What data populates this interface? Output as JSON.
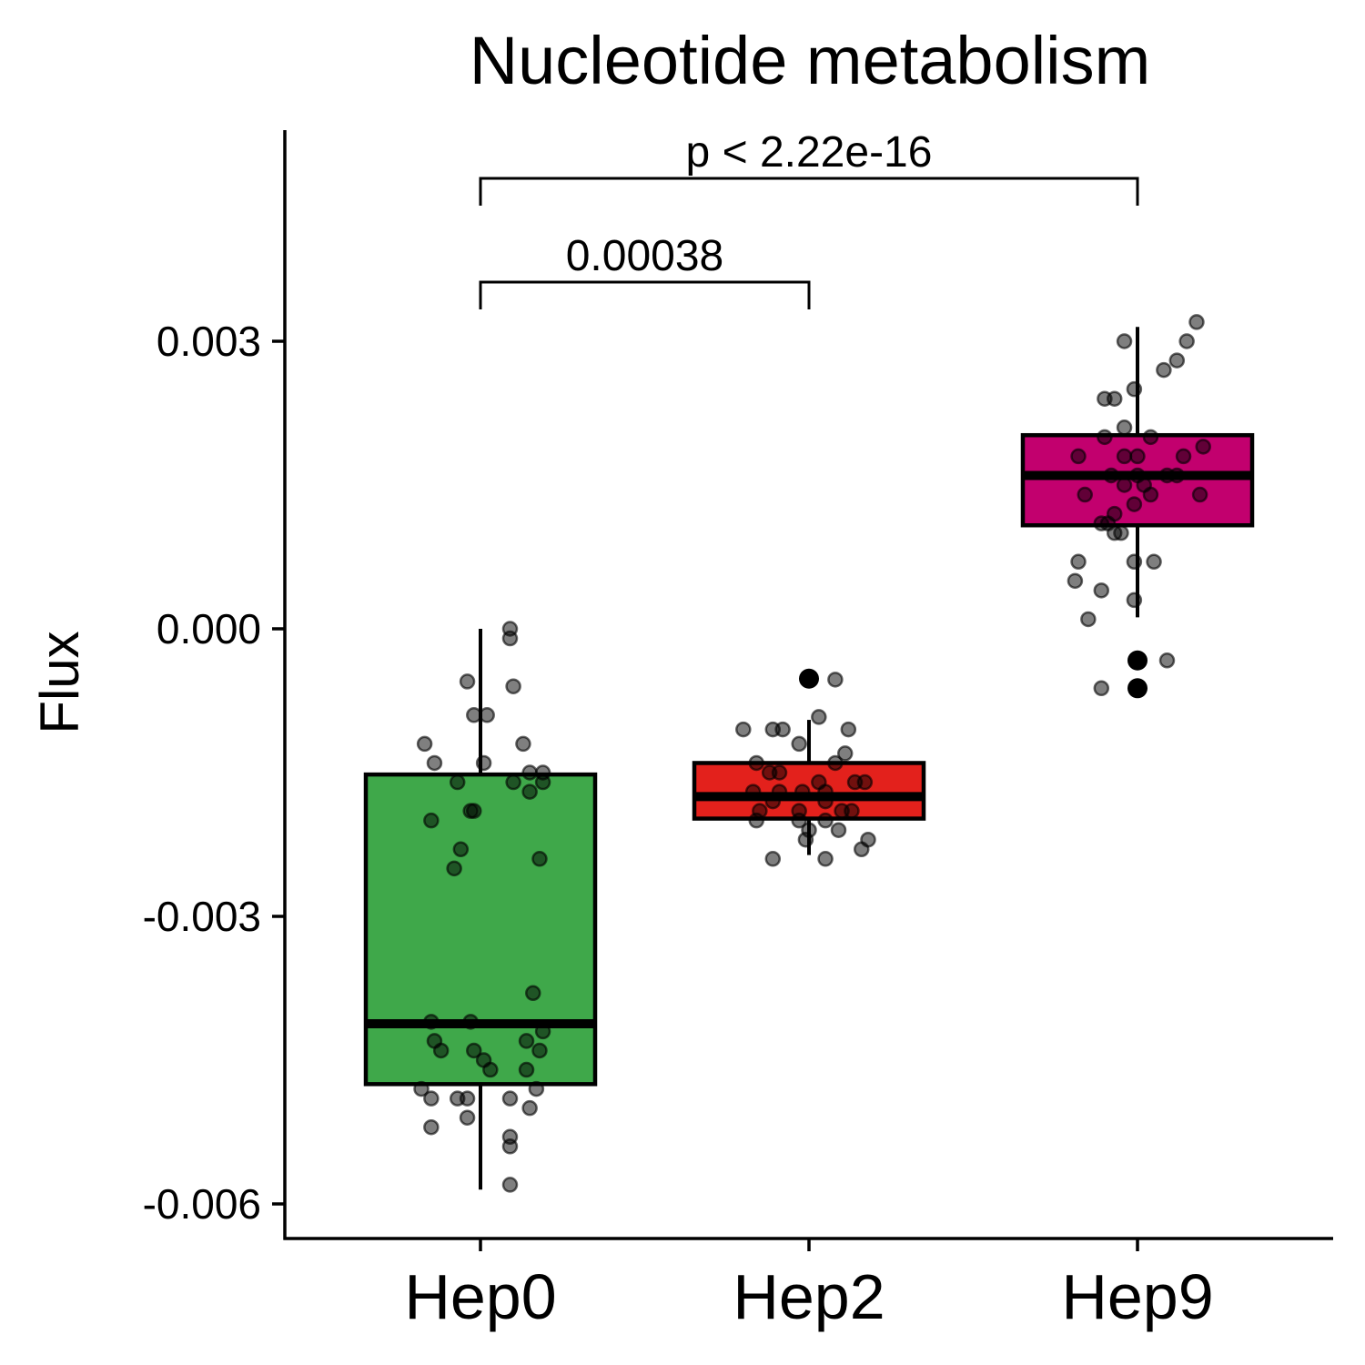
{
  "chart_data": {
    "type": "box",
    "title": "Nucleotide metabolism",
    "xlabel": "",
    "ylabel": "Flux",
    "ylim": [
      -0.0064,
      0.0052
    ],
    "yticks": [
      {
        "value": 0.003,
        "label": "0.003"
      },
      {
        "value": 0.0,
        "label": "0.000"
      },
      {
        "value": -0.003,
        "label": "-0.003"
      },
      {
        "value": -0.006,
        "label": "-0.006"
      }
    ],
    "grid": false,
    "legend": "none",
    "categories": [
      "Hep0",
      "Hep2",
      "Hep9"
    ],
    "boxes": [
      {
        "category": "Hep0",
        "color": "#3fa84a",
        "whisker_low": -0.00585,
        "q1": -0.00475,
        "median": -0.00412,
        "q3": -0.00152,
        "whisker_high": 0.0
      },
      {
        "category": "Hep2",
        "color": "#e3211c",
        "whisker_low": -0.00236,
        "q1": -0.00198,
        "median": -0.00175,
        "q3": -0.0014,
        "whisker_high": -0.00095
      },
      {
        "category": "Hep9",
        "color": "#c2006e",
        "whisker_low": 0.00012,
        "q1": 0.00108,
        "median": 0.0016,
        "q3": 0.00202,
        "whisker_high": 0.00315
      }
    ],
    "outliers": [
      {
        "category": "Hep2",
        "value": -0.00052
      },
      {
        "category": "Hep9",
        "value": -0.00033
      },
      {
        "category": "Hep9",
        "value": -0.00062
      }
    ],
    "jitter_points": {
      "Hep0": [
        {
          "dx": 0.09,
          "y": 0.0
        },
        {
          "dx": 0.09,
          "y": -0.0001
        },
        {
          "dx": -0.04,
          "y": -0.00055
        },
        {
          "dx": 0.1,
          "y": -0.0006
        },
        {
          "dx": -0.02,
          "y": -0.0009
        },
        {
          "dx": 0.02,
          "y": -0.0009
        },
        {
          "dx": -0.17,
          "y": -0.0012
        },
        {
          "dx": 0.13,
          "y": -0.0012
        },
        {
          "dx": -0.14,
          "y": -0.0014
        },
        {
          "dx": 0.01,
          "y": -0.0014
        },
        {
          "dx": 0.15,
          "y": -0.0015
        },
        {
          "dx": 0.19,
          "y": -0.0015
        },
        {
          "dx": -0.07,
          "y": -0.0016
        },
        {
          "dx": 0.1,
          "y": -0.0016
        },
        {
          "dx": 0.19,
          "y": -0.0016
        },
        {
          "dx": 0.15,
          "y": -0.0017
        },
        {
          "dx": -0.02,
          "y": -0.0019
        },
        {
          "dx": -0.03,
          "y": -0.0019
        },
        {
          "dx": -0.15,
          "y": -0.002
        },
        {
          "dx": -0.06,
          "y": -0.0023
        },
        {
          "dx": -0.08,
          "y": -0.0025
        },
        {
          "dx": 0.18,
          "y": -0.0024
        },
        {
          "dx": 0.16,
          "y": -0.0038
        },
        {
          "dx": -0.15,
          "y": -0.0041
        },
        {
          "dx": -0.03,
          "y": -0.0041
        },
        {
          "dx": 0.19,
          "y": -0.0042
        },
        {
          "dx": -0.14,
          "y": -0.0043
        },
        {
          "dx": 0.14,
          "y": -0.0043
        },
        {
          "dx": 0.18,
          "y": -0.0044
        },
        {
          "dx": -0.12,
          "y": -0.0044
        },
        {
          "dx": -0.02,
          "y": -0.0044
        },
        {
          "dx": 0.01,
          "y": -0.0045
        },
        {
          "dx": 0.03,
          "y": -0.0046
        },
        {
          "dx": 0.14,
          "y": -0.0046
        },
        {
          "dx": -0.18,
          "y": -0.0048
        },
        {
          "dx": 0.17,
          "y": -0.0048
        },
        {
          "dx": -0.15,
          "y": -0.0049
        },
        {
          "dx": -0.07,
          "y": -0.0049
        },
        {
          "dx": -0.04,
          "y": -0.0049
        },
        {
          "dx": 0.09,
          "y": -0.0049
        },
        {
          "dx": 0.15,
          "y": -0.005
        },
        {
          "dx": -0.04,
          "y": -0.0051
        },
        {
          "dx": -0.15,
          "y": -0.0052
        },
        {
          "dx": 0.09,
          "y": -0.0053
        },
        {
          "dx": 0.09,
          "y": -0.0054
        },
        {
          "dx": 0.09,
          "y": -0.0058
        }
      ],
      "Hep2": [
        {
          "dx": 0.08,
          "y": -0.00053
        },
        {
          "dx": 0.03,
          "y": -0.00092
        },
        {
          "dx": -0.2,
          "y": -0.00105
        },
        {
          "dx": -0.11,
          "y": -0.00105
        },
        {
          "dx": -0.08,
          "y": -0.00105
        },
        {
          "dx": 0.12,
          "y": -0.00105
        },
        {
          "dx": -0.03,
          "y": -0.0012
        },
        {
          "dx": 0.11,
          "y": -0.0013
        },
        {
          "dx": -0.16,
          "y": -0.0014
        },
        {
          "dx": 0.08,
          "y": -0.0014
        },
        {
          "dx": -0.12,
          "y": -0.0015
        },
        {
          "dx": -0.09,
          "y": -0.0015
        },
        {
          "dx": 0.03,
          "y": -0.0016
        },
        {
          "dx": 0.14,
          "y": -0.0016
        },
        {
          "dx": 0.17,
          "y": -0.0016
        },
        {
          "dx": -0.17,
          "y": -0.0017
        },
        {
          "dx": -0.09,
          "y": -0.0017
        },
        {
          "dx": -0.02,
          "y": -0.0017
        },
        {
          "dx": 0.05,
          "y": -0.0017
        },
        {
          "dx": -0.11,
          "y": -0.0018
        },
        {
          "dx": 0.05,
          "y": -0.0018
        },
        {
          "dx": 0.1,
          "y": -0.0019
        },
        {
          "dx": -0.15,
          "y": -0.0019
        },
        {
          "dx": -0.03,
          "y": -0.0019
        },
        {
          "dx": 0.13,
          "y": -0.0019
        },
        {
          "dx": -0.03,
          "y": -0.002
        },
        {
          "dx": 0.05,
          "y": -0.002
        },
        {
          "dx": -0.16,
          "y": -0.002
        },
        {
          "dx": 0.0,
          "y": -0.0021
        },
        {
          "dx": 0.09,
          "y": -0.0021
        },
        {
          "dx": -0.01,
          "y": -0.0022
        },
        {
          "dx": 0.18,
          "y": -0.0022
        },
        {
          "dx": 0.16,
          "y": -0.0023
        },
        {
          "dx": 0.05,
          "y": -0.0024
        },
        {
          "dx": -0.11,
          "y": -0.0024
        }
      ],
      "Hep9": [
        {
          "dx": 0.18,
          "y": 0.0032
        },
        {
          "dx": -0.04,
          "y": 0.003
        },
        {
          "dx": 0.15,
          "y": 0.003
        },
        {
          "dx": 0.12,
          "y": 0.0028
        },
        {
          "dx": 0.08,
          "y": 0.0027
        },
        {
          "dx": -0.1,
          "y": 0.0024
        },
        {
          "dx": -0.07,
          "y": 0.0024
        },
        {
          "dx": -0.01,
          "y": 0.0025
        },
        {
          "dx": -0.04,
          "y": 0.0021
        },
        {
          "dx": -0.1,
          "y": 0.002
        },
        {
          "dx": 0.04,
          "y": 0.002
        },
        {
          "dx": 0.2,
          "y": 0.0019
        },
        {
          "dx": -0.18,
          "y": 0.0018
        },
        {
          "dx": -0.04,
          "y": 0.0018
        },
        {
          "dx": 0.0,
          "y": 0.0018
        },
        {
          "dx": 0.14,
          "y": 0.0018
        },
        {
          "dx": 0.0,
          "y": 0.0016
        },
        {
          "dx": -0.08,
          "y": 0.0016
        },
        {
          "dx": 0.09,
          "y": 0.0016
        },
        {
          "dx": 0.12,
          "y": 0.0016
        },
        {
          "dx": -0.04,
          "y": 0.0015
        },
        {
          "dx": 0.02,
          "y": 0.0015
        },
        {
          "dx": 0.19,
          "y": 0.0014
        },
        {
          "dx": -0.16,
          "y": 0.0014
        },
        {
          "dx": 0.04,
          "y": 0.0014
        },
        {
          "dx": -0.07,
          "y": 0.0012
        },
        {
          "dx": -0.01,
          "y": 0.0013
        },
        {
          "dx": -0.09,
          "y": 0.0011
        },
        {
          "dx": -0.11,
          "y": 0.0011
        },
        {
          "dx": -0.05,
          "y": 0.001
        },
        {
          "dx": -0.07,
          "y": 0.001
        },
        {
          "dx": -0.18,
          "y": 0.0007
        },
        {
          "dx": -0.01,
          "y": 0.0007
        },
        {
          "dx": 0.05,
          "y": 0.0007
        },
        {
          "dx": -0.19,
          "y": 0.0005
        },
        {
          "dx": -0.11,
          "y": 0.0004
        },
        {
          "dx": -0.01,
          "y": 0.0003
        },
        {
          "dx": -0.15,
          "y": 0.0001
        },
        {
          "dx": 0.09,
          "y": -0.00033
        },
        {
          "dx": -0.11,
          "y": -0.00062
        }
      ]
    },
    "annotations": [
      {
        "from": "Hep0",
        "to": "Hep2",
        "label": "0.00038"
      },
      {
        "from": "Hep0",
        "to": "Hep9",
        "label": "p < 2.22e-16"
      }
    ]
  }
}
